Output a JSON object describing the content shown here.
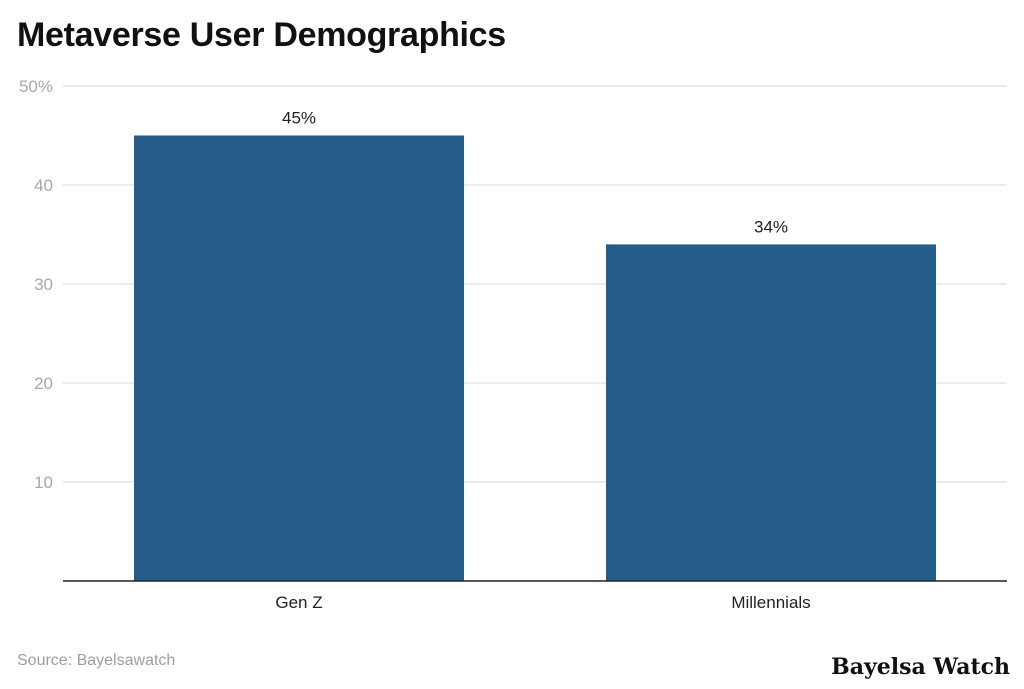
{
  "chart_data": {
    "type": "bar",
    "title": "Metaverse User Demographics",
    "categories": [
      "Gen Z",
      "Millennials"
    ],
    "values": [
      45,
      34
    ],
    "data_labels": [
      "45%",
      "34%"
    ],
    "xlabel": "",
    "ylabel": "",
    "ylim": [
      0,
      50
    ],
    "yticks": [
      10,
      20,
      30,
      40,
      50
    ],
    "ytick_labels": [
      "10",
      "20",
      "30",
      "40",
      "50%"
    ],
    "grid": true,
    "bar_color": "#265c89"
  },
  "source": "Source: Bayelsawatch",
  "brand": "Bayelsa Watch"
}
